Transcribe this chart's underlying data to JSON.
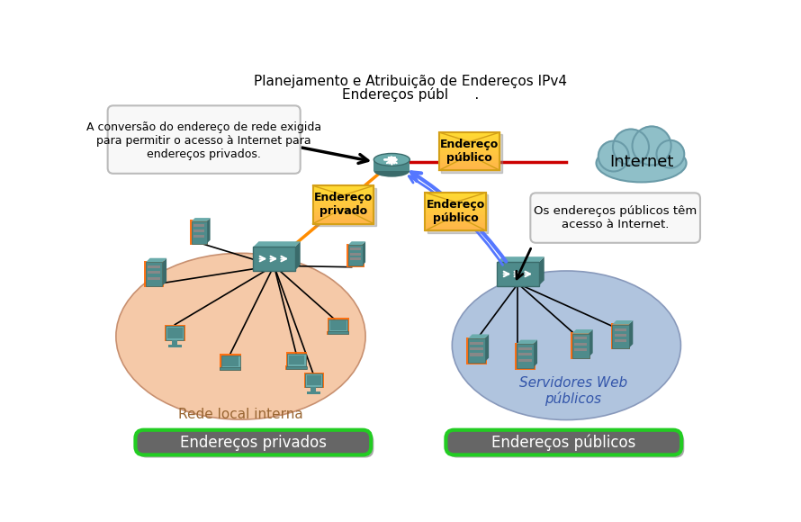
{
  "title_line1": "Planejamento e Atribuição de Endereços IPv4",
  "title_line2": "Endereços públ      .",
  "left_box_text": "A conversão do endereço de rede exigida\npara permitir o acesso à Internet para\nendereços privados.",
  "right_box_text": "Os endereços públicos têm\nacesso à Internet.",
  "label_privado": "Endereço\nprivado",
  "label_publico1": "Endereço\npúblico",
  "label_publico2": "Endereço\npúblico",
  "left_network_label": "Rede local interna",
  "right_network_label": "Servidores Web\npúblicos",
  "bottom_left_label": "Endereços privados",
  "bottom_right_label": "Endereços públicos",
  "yellow_color": "#FFD700",
  "yellow_dark": "#D4A017",
  "orange_network_color": "#F5C9A8",
  "blue_network_color": "#B0C4DE",
  "teal_color": "#4E8B8B",
  "teal_light": "#6AABAB",
  "teal_dark": "#3A6B6B",
  "orange_border": "#FF6600",
  "green_border": "#22CC22",
  "gray_button": "#666666",
  "cloud_color": "#8FBFC8",
  "cloud_outline": "#6A9BA8",
  "red_line": "#CC0000",
  "blue_arrow": "#5577FF",
  "orange_line": "#FF8C00",
  "black": "#000000",
  "white": "#FFFFFF",
  "light_gray_box": "#F8F8F8",
  "gray_border_box": "#BBBBBB",
  "brown_text": "#996633",
  "blue_text": "#3355AA"
}
